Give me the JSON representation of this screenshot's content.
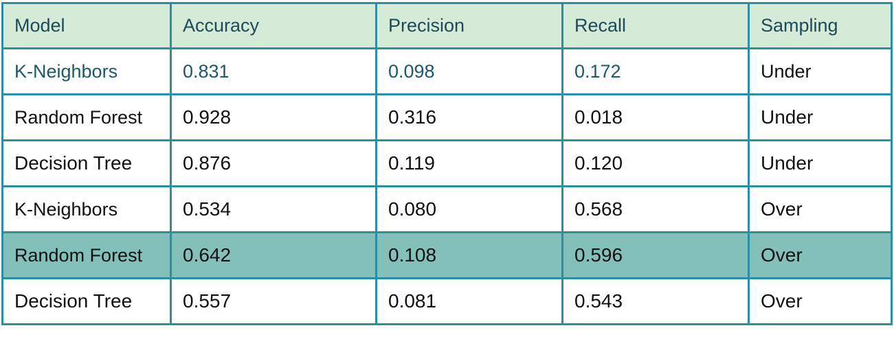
{
  "chart_data": {
    "type": "table",
    "columns": [
      "Model",
      "Accuracy",
      "Precision",
      "Recall",
      "Sampling"
    ],
    "rows": [
      [
        "K-Neighbors",
        "0.831",
        "0.098",
        "0.172",
        "Under"
      ],
      [
        "Random Forest",
        "0.928",
        "0.316",
        "0.018",
        "Under"
      ],
      [
        "Decision Tree",
        "0.876",
        "0.119",
        "0.120",
        "Under"
      ],
      [
        "K-Neighbors",
        "0.534",
        "0.080",
        "0.568",
        "Over"
      ],
      [
        "Random Forest",
        "0.642",
        "0.108",
        "0.596",
        "Over"
      ],
      [
        "Decision Tree",
        "0.557",
        "0.081",
        "0.543",
        "Over"
      ]
    ]
  },
  "colors": {
    "border": "#2a8fa4",
    "header_background": "#d5ead7",
    "highlight_background": "#82c0b9",
    "teal_text": "#1c4a5a"
  }
}
